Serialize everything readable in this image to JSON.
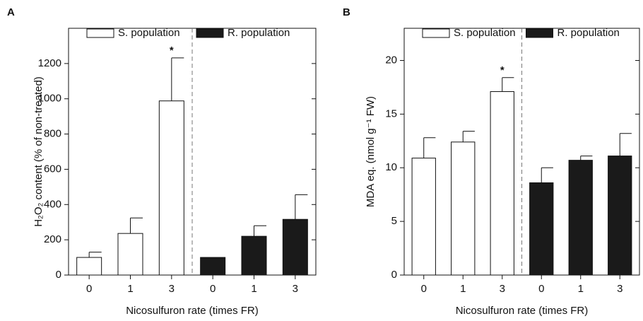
{
  "chart_data": [
    {
      "type": "bar",
      "panel": "A",
      "ylabel": "H₂O₂ content (% of non-treated)",
      "xlabel": "Nicosulfuron rate (times FR)",
      "categories": [
        "0",
        "1",
        "3",
        "0",
        "1",
        "3"
      ],
      "series": [
        {
          "name": "S. population",
          "color": "#ffffff",
          "values": [
            100,
            236,
            988,
            null,
            null,
            null
          ],
          "errors": [
            30,
            88,
            244,
            null,
            null,
            null
          ]
        },
        {
          "name": "R. population",
          "color": "#1a1a1a",
          "values": [
            null,
            null,
            null,
            100,
            220,
            316
          ],
          "errors": [
            null,
            null,
            null,
            null,
            60,
            140
          ]
        }
      ],
      "annotations": [
        {
          "text": "*",
          "index": 2
        }
      ],
      "ylim": [
        0,
        1400
      ],
      "yticks": [
        0,
        200,
        400,
        600,
        800,
        1000,
        1200
      ]
    },
    {
      "type": "bar",
      "panel": "B",
      "ylabel": "MDA eq. (nmol g⁻¹ FW)",
      "xlabel": "Nicosulfuron rate (times FR)",
      "categories": [
        "0",
        "1",
        "3",
        "0",
        "1",
        "3"
      ],
      "series": [
        {
          "name": "S. population",
          "color": "#ffffff",
          "values": [
            10.9,
            12.4,
            17.1,
            null,
            null,
            null
          ],
          "errors": [
            1.9,
            1.0,
            1.3,
            null,
            null,
            null
          ]
        },
        {
          "name": "R. population",
          "color": "#1a1a1a",
          "values": [
            null,
            null,
            null,
            8.6,
            10.7,
            11.1
          ],
          "errors": [
            null,
            null,
            null,
            1.4,
            0.4,
            2.1
          ]
        }
      ],
      "annotations": [
        {
          "text": "*",
          "index": 2
        }
      ],
      "ylim": [
        0,
        23
      ],
      "yticks": [
        0,
        5,
        10,
        15,
        20
      ]
    }
  ]
}
